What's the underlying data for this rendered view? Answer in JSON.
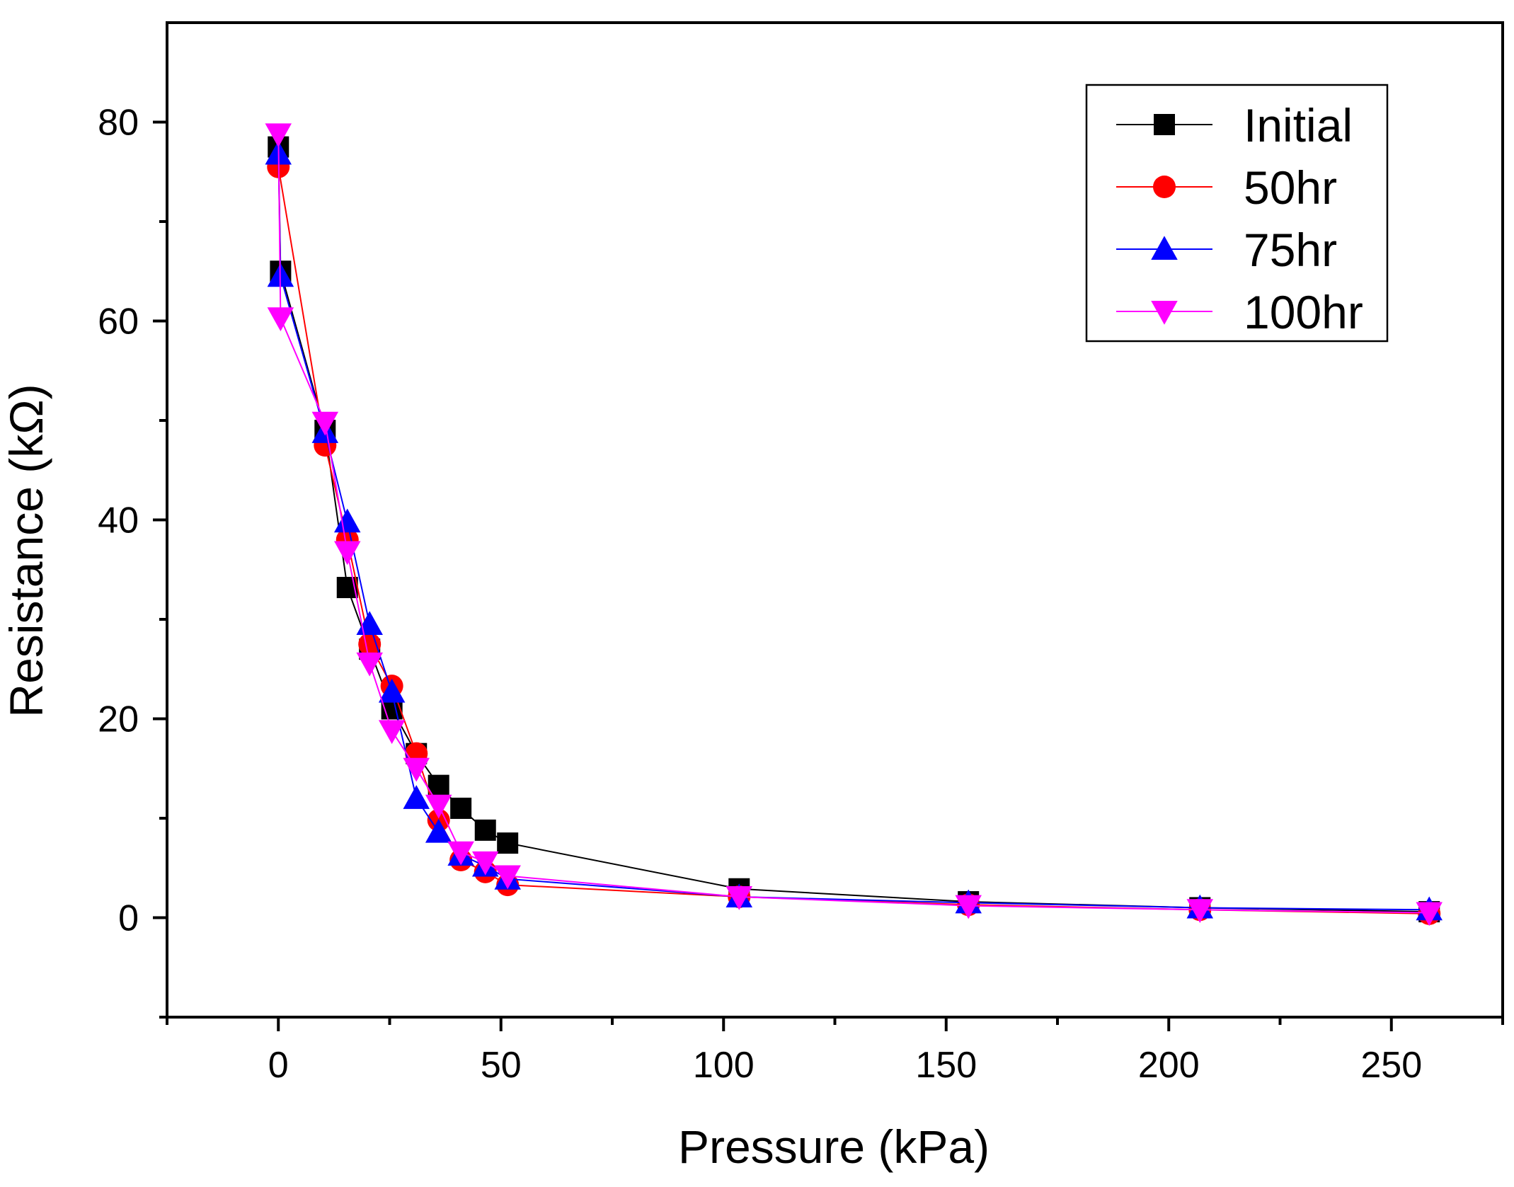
{
  "chart_data": {
    "type": "line",
    "title": "",
    "xlabel": "Pressure (kPa)",
    "ylabel": "Resistance (kΩ)",
    "xlim": [
      -25,
      275
    ],
    "ylim": [
      -10,
      90
    ],
    "x_ticks": [
      0,
      50,
      100,
      150,
      200,
      250
    ],
    "x_minor_ticks": [
      -25,
      25,
      75,
      125,
      175,
      225,
      275
    ],
    "y_ticks": [
      0,
      20,
      40,
      60,
      80
    ],
    "y_minor_ticks": [
      -10,
      10,
      30,
      50,
      70
    ],
    "grid": false,
    "legend_position": "top-right",
    "series": [
      {
        "name": "Initial",
        "color": "#000000",
        "marker": "square",
        "x": [
          0,
          0.5,
          10.5,
          15.5,
          20.5,
          25.5,
          31,
          36,
          41,
          46.5,
          51.5,
          103.5,
          155,
          207,
          258.5
        ],
        "y": [
          77.5,
          65,
          49,
          33.2,
          27,
          21,
          16.5,
          13.3,
          11,
          8.8,
          7.5,
          2.9,
          1.6,
          1.0,
          0.6
        ]
      },
      {
        "name": "50hr",
        "color": "#ff0000",
        "marker": "circle",
        "x": [
          0,
          10.5,
          15.5,
          20.5,
          25.5,
          31,
          36,
          41,
          46.5,
          51.5,
          103.5,
          155,
          207,
          258.5
        ],
        "y": [
          75.5,
          47.5,
          38,
          27.5,
          23.3,
          16.5,
          9.8,
          5.8,
          4.6,
          3.3,
          2.1,
          1.3,
          0.8,
          0.4
        ]
      },
      {
        "name": "75hr",
        "color": "#0000ff",
        "marker": "triangle-up",
        "x": [
          0,
          0.5,
          10.5,
          15.5,
          20.5,
          25.5,
          31,
          36,
          41,
          46.5,
          51.5,
          103.5,
          155,
          207,
          258.5
        ],
        "y": [
          76.8,
          64.5,
          48.8,
          39.8,
          29.5,
          22.7,
          12,
          8.6,
          6.3,
          5.2,
          3.9,
          2.1,
          1.5,
          1.0,
          0.8
        ]
      },
      {
        "name": "100hr",
        "color": "#ff00ff",
        "marker": "triangle-down",
        "x": [
          0,
          0.5,
          10.5,
          15.5,
          20.5,
          25.5,
          31,
          36,
          41,
          46.5,
          51.5,
          103.5,
          155,
          207,
          258.5
        ],
        "y": [
          78.8,
          60.3,
          49.8,
          36.8,
          25.6,
          18.8,
          15,
          11.3,
          6.6,
          5.6,
          4.2,
          2.1,
          1.2,
          0.8,
          0.5
        ]
      }
    ]
  }
}
